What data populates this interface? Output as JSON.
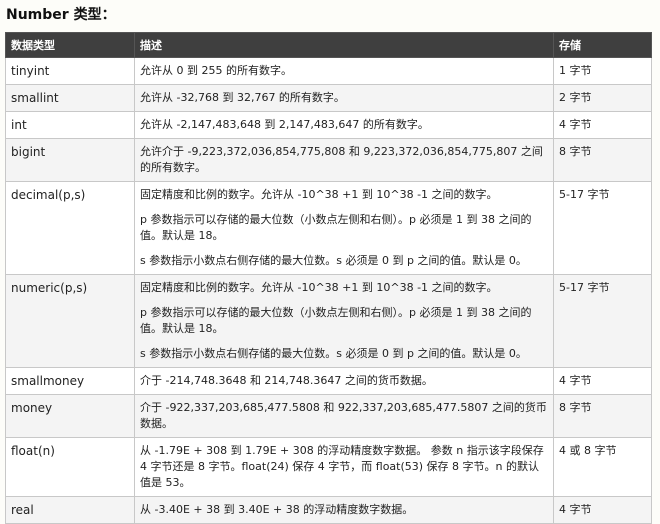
{
  "title": "Number 类型：",
  "headers": [
    "数据类型",
    "描述",
    "存储"
  ],
  "rows": [
    {
      "type": "tinyint",
      "desc": [
        "允许从 0 到 255 的所有数字。"
      ],
      "storage": "1 字节"
    },
    {
      "type": "smallint",
      "desc": [
        "允许从 -32,768 到 32,767 的所有数字。"
      ],
      "storage": "2 字节"
    },
    {
      "type": "int",
      "desc": [
        "允许从 -2,147,483,648 到 2,147,483,647 的所有数字。"
      ],
      "storage": "4 字节"
    },
    {
      "type": "bigint",
      "desc": [
        "允许介于 -9,223,372,036,854,775,808 和 9,223,372,036,854,775,807 之间的所有数字。"
      ],
      "storage": "8 字节"
    },
    {
      "type": "decimal(p,s)",
      "desc": [
        "固定精度和比例的数字。允许从 -10^38 +1 到 10^38 -1 之间的数字。",
        "p 参数指示可以存储的最大位数（小数点左侧和右侧）。p 必须是 1 到 38 之间的值。默认是 18。",
        "s 参数指示小数点右侧存储的最大位数。s 必须是 0 到 p 之间的值。默认是 0。"
      ],
      "storage": "5-17 字节"
    },
    {
      "type": "numeric(p,s)",
      "desc": [
        "固定精度和比例的数字。允许从 -10^38 +1 到 10^38 -1 之间的数字。",
        "p 参数指示可以存储的最大位数（小数点左侧和右侧）。p 必须是 1 到 38 之间的值。默认是 18。",
        "s 参数指示小数点右侧存储的最大位数。s 必须是 0 到 p 之间的值。默认是 0。"
      ],
      "storage": "5-17 字节"
    },
    {
      "type": "smallmoney",
      "desc": [
        "介于 -214,748.3648 和 214,748.3647 之间的货币数据。"
      ],
      "storage": "4 字节"
    },
    {
      "type": "money",
      "desc": [
        "介于 -922,337,203,685,477.5808 和 922,337,203,685,477.5807 之间的货币数据。"
      ],
      "storage": "8 字节"
    },
    {
      "type": "float(n)",
      "desc": [
        "从 -1.79E + 308 到 1.79E + 308 的浮动精度数字数据。 参数 n 指示该字段保存 4 字节还是 8 字节。float(24) 保存 4 字节，而 float(53) 保存 8 字节。n 的默认值是 53。"
      ],
      "storage": "4 或 8 字节"
    },
    {
      "type": "real",
      "desc": [
        "从 -3.40E + 38 到 3.40E + 38 的浮动精度数字数据。"
      ],
      "storage": "4 字节"
    }
  ]
}
